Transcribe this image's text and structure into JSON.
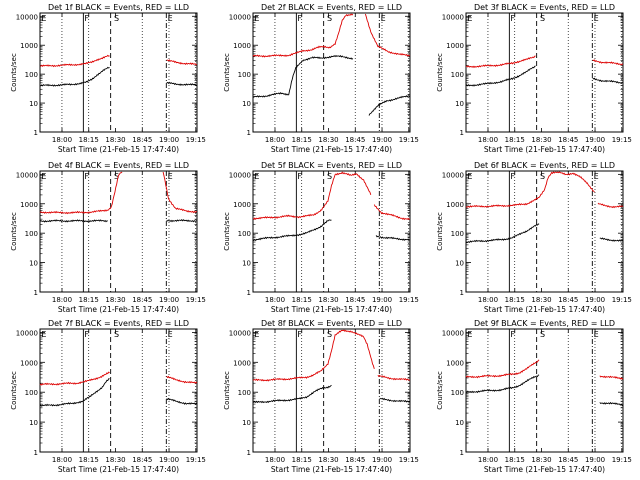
{
  "figure": {
    "ylabel": "Counts/sec",
    "xlabel": "Start Time (21-Feb-15 17:47:40)",
    "y_ticks": [
      "1",
      "10",
      "100",
      "1000",
      "10000"
    ],
    "x_ticks": [
      "18:00",
      "18:15",
      "18:30",
      "18:45",
      "19:00",
      "19:15"
    ],
    "x_ticks_narrow": [
      "18:00",
      "18:15",
      "18:30",
      "18:45",
      "19:00",
      "19:15"
    ],
    "flag_labels": [
      "E",
      "F",
      "S",
      "E"
    ],
    "colors": {
      "events": "#000000",
      "lld": "#dd0000"
    }
  },
  "chart_data": [
    {
      "type": "line",
      "title": "Det 1f BLACK = Events, RED = LLD",
      "x_unit": "minutes after 17:47:40",
      "ylim": [
        1,
        13000
      ],
      "log_y": true,
      "series": [
        {
          "color": "#000000",
          "x": [
            0,
            10,
            18,
            22,
            26,
            29,
            32,
            35,
            37,
            39
          ],
          "y": [
            40,
            42,
            44,
            48,
            52,
            65,
            95,
            130,
            150,
            170
          ]
        },
        {
          "color": "#000000",
          "x": [
            71,
            76,
            82,
            88
          ],
          "y": [
            50,
            45,
            44,
            42
          ]
        },
        {
          "color": "#dd0000",
          "x": [
            0,
            10,
            18,
            22,
            26,
            29,
            32,
            35,
            37,
            39
          ],
          "y": [
            190,
            200,
            210,
            220,
            230,
            260,
            320,
            360,
            400,
            430
          ]
        },
        {
          "color": "#dd0000",
          "x": [
            71,
            76,
            82,
            88
          ],
          "y": [
            300,
            260,
            230,
            215
          ]
        }
      ]
    },
    {
      "type": "line",
      "title": "Det 2f BLACK = Events, RED = LLD",
      "x_unit": "minutes after 17:47:40",
      "ylim": [
        1,
        13000
      ],
      "log_y": true,
      "series": [
        {
          "color": "#000000",
          "x": [
            0,
            8,
            16,
            20,
            22,
            24,
            28,
            33,
            38,
            45,
            50,
            56
          ],
          "y": [
            16,
            18,
            22,
            20,
            70,
            160,
            300,
            380,
            350,
            420,
            400,
            350
          ]
        },
        {
          "color": "#000000",
          "x": [
            65,
            70,
            75,
            82,
            88
          ],
          "y": [
            4,
            8,
            12,
            15,
            18
          ]
        },
        {
          "color": "#dd0000",
          "x": [
            0,
            10,
            20,
            24,
            28,
            33,
            37,
            40,
            43,
            46,
            48,
            50,
            52,
            56
          ],
          "y": [
            420,
            430,
            450,
            520,
            650,
            700,
            850,
            900,
            850,
            1100,
            2500,
            7000,
            11000,
            12000
          ]
        },
        {
          "color": "#dd0000",
          "x": [
            63,
            66,
            70,
            76,
            82,
            88
          ],
          "y": [
            12000,
            3000,
            900,
            600,
            480,
            440
          ]
        }
      ]
    },
    {
      "type": "line",
      "title": "Det 3f BLACK = Events, RED = LLD",
      "x_unit": "minutes after 17:47:40",
      "ylim": [
        1,
        13000
      ],
      "log_y": true,
      "series": [
        {
          "color": "#000000",
          "x": [
            0,
            10,
            20,
            26,
            30,
            34,
            37,
            39
          ],
          "y": [
            40,
            45,
            55,
            70,
            90,
            120,
            160,
            190
          ]
        },
        {
          "color": "#000000",
          "x": [
            71,
            76,
            82,
            88
          ],
          "y": [
            70,
            60,
            55,
            50
          ]
        },
        {
          "color": "#dd0000",
          "x": [
            0,
            10,
            20,
            26,
            30,
            34,
            37,
            39
          ],
          "y": [
            180,
            190,
            210,
            240,
            280,
            320,
            370,
            420
          ]
        },
        {
          "color": "#dd0000",
          "x": [
            71,
            76,
            82,
            88
          ],
          "y": [
            300,
            260,
            240,
            220
          ]
        }
      ]
    },
    {
      "type": "line",
      "title": "Det 4f BLACK = Events, RED = LLD",
      "x_unit": "minutes after 17:47:40",
      "ylim": [
        1,
        13000
      ],
      "log_y": true,
      "series": [
        {
          "color": "#000000",
          "x": [
            0,
            12,
            24,
            38
          ],
          "y": [
            260,
            262,
            262,
            262
          ]
        },
        {
          "color": "#000000",
          "x": [
            71,
            76,
            82,
            88
          ],
          "y": [
            270,
            268,
            265,
            265
          ]
        },
        {
          "color": "#dd0000",
          "x": [
            0,
            10,
            20,
            28,
            34,
            38,
            40,
            42,
            44,
            46
          ],
          "y": [
            520,
            500,
            500,
            520,
            560,
            620,
            800,
            2500,
            9000,
            12500
          ]
        },
        {
          "color": "#dd0000",
          "x": [
            69,
            72,
            76,
            82,
            88
          ],
          "y": [
            12500,
            1500,
            700,
            560,
            540
          ]
        }
      ]
    },
    {
      "type": "line",
      "title": "Det 5f BLACK = Events, RED = LLD",
      "x_unit": "minutes after 17:47:40",
      "ylim": [
        1,
        13000
      ],
      "log_y": true,
      "series": [
        {
          "color": "#000000",
          "x": [
            0,
            10,
            20,
            26,
            30,
            34,
            38,
            42,
            44
          ],
          "y": [
            60,
            70,
            80,
            90,
            100,
            130,
            170,
            260,
            280
          ]
        },
        {
          "color": "#000000",
          "x": [
            69,
            74,
            80,
            88
          ],
          "y": [
            80,
            70,
            65,
            60
          ]
        },
        {
          "color": "#dd0000",
          "x": [
            0,
            10,
            20,
            26,
            30,
            34,
            38,
            42,
            44,
            46,
            50,
            55,
            58,
            62,
            66
          ],
          "y": [
            320,
            340,
            380,
            360,
            380,
            420,
            600,
            1200,
            4000,
            10000,
            11500,
            9000,
            10500,
            6500,
            2000
          ]
        },
        {
          "color": "#dd0000",
          "x": [
            68,
            72,
            78,
            84,
            88
          ],
          "y": [
            900,
            500,
            400,
            320,
            300
          ]
        }
      ]
    },
    {
      "type": "line",
      "title": "Det 6f BLACK = Events, RED = LLD",
      "x_unit": "minutes after 17:47:40",
      "ylim": [
        1,
        13000
      ],
      "log_y": true,
      "series": [
        {
          "color": "#000000",
          "x": [
            0,
            10,
            20,
            26,
            30,
            34,
            38,
            41
          ],
          "y": [
            50,
            55,
            60,
            70,
            90,
            120,
            170,
            200
          ]
        },
        {
          "color": "#000000",
          "x": [
            75,
            80,
            86,
            88
          ],
          "y": [
            65,
            60,
            55,
            55
          ]
        },
        {
          "color": "#dd0000",
          "x": [
            0,
            10,
            20,
            28,
            34,
            38,
            41,
            44,
            46,
            48,
            52,
            56,
            60,
            64,
            68,
            72
          ],
          "y": [
            800,
            820,
            850,
            900,
            1000,
            1300,
            1600,
            3000,
            8000,
            11500,
            11500,
            10000,
            11000,
            8000,
            5000,
            2500
          ]
        },
        {
          "color": "#dd0000",
          "x": [
            74,
            78,
            82,
            88
          ],
          "y": [
            1000,
            850,
            800,
            800
          ]
        }
      ]
    },
    {
      "type": "line",
      "title": "Det 7f BLACK = Events, RED = LLD",
      "x_unit": "minutes after 17:47:40",
      "ylim": [
        1,
        13000
      ],
      "log_y": true,
      "series": [
        {
          "color": "#000000",
          "x": [
            0,
            10,
            18,
            24,
            28,
            32,
            35,
            37,
            39
          ],
          "y": [
            35,
            38,
            42,
            50,
            70,
            110,
            150,
            220,
            280
          ]
        },
        {
          "color": "#000000",
          "x": [
            71,
            76,
            82,
            88
          ],
          "y": [
            60,
            50,
            42,
            40
          ]
        },
        {
          "color": "#dd0000",
          "x": [
            0,
            10,
            20,
            26,
            30,
            34,
            37,
            39
          ],
          "y": [
            180,
            190,
            200,
            230,
            270,
            330,
            400,
            450
          ]
        },
        {
          "color": "#dd0000",
          "x": [
            71,
            76,
            82,
            88
          ],
          "y": [
            330,
            260,
            220,
            200
          ]
        }
      ]
    },
    {
      "type": "line",
      "title": "Det 8f BLACK = Events, RED = LLD",
      "x_unit": "minutes after 17:47:40",
      "ylim": [
        1,
        13000
      ],
      "log_y": true,
      "series": [
        {
          "color": "#000000",
          "x": [
            0,
            10,
            20,
            26,
            30,
            34,
            38,
            42,
            44
          ],
          "y": [
            45,
            50,
            55,
            60,
            70,
            100,
            130,
            150,
            170
          ]
        },
        {
          "color": "#000000",
          "x": [
            71,
            76,
            82,
            88
          ],
          "y": [
            60,
            55,
            50,
            48
          ]
        },
        {
          "color": "#dd0000",
          "x": [
            0,
            10,
            20,
            26,
            30,
            34,
            38,
            42,
            44,
            46,
            50,
            55,
            58,
            62,
            64,
            68
          ],
          "y": [
            250,
            260,
            280,
            300,
            320,
            380,
            500,
            900,
            2500,
            8000,
            11500,
            11000,
            9000,
            7000,
            4000,
            600
          ]
        },
        {
          "color": "#dd0000",
          "x": [
            70,
            76,
            82,
            88
          ],
          "y": [
            350,
            300,
            270,
            260
          ]
        }
      ]
    },
    {
      "type": "line",
      "title": "Det 9f BLACK = Events, RED = LLD",
      "x_unit": "minutes after 17:47:40",
      "ylim": [
        1,
        13000
      ],
      "log_y": true,
      "series": [
        {
          "color": "#000000",
          "x": [
            0,
            10,
            20,
            26,
            30,
            34,
            38,
            41
          ],
          "y": [
            100,
            110,
            120,
            140,
            170,
            230,
            320,
            380
          ]
        },
        {
          "color": "#000000",
          "x": [
            75,
            80,
            86,
            88
          ],
          "y": [
            45,
            42,
            40,
            38
          ]
        },
        {
          "color": "#dd0000",
          "x": [
            0,
            10,
            20,
            26,
            30,
            34,
            38,
            41
          ],
          "y": [
            320,
            340,
            360,
            400,
            450,
            600,
            900,
            1200
          ]
        },
        {
          "color": "#dd0000",
          "x": [
            75,
            80,
            86,
            88
          ],
          "y": [
            350,
            320,
            300,
            290
          ]
        }
      ]
    }
  ]
}
